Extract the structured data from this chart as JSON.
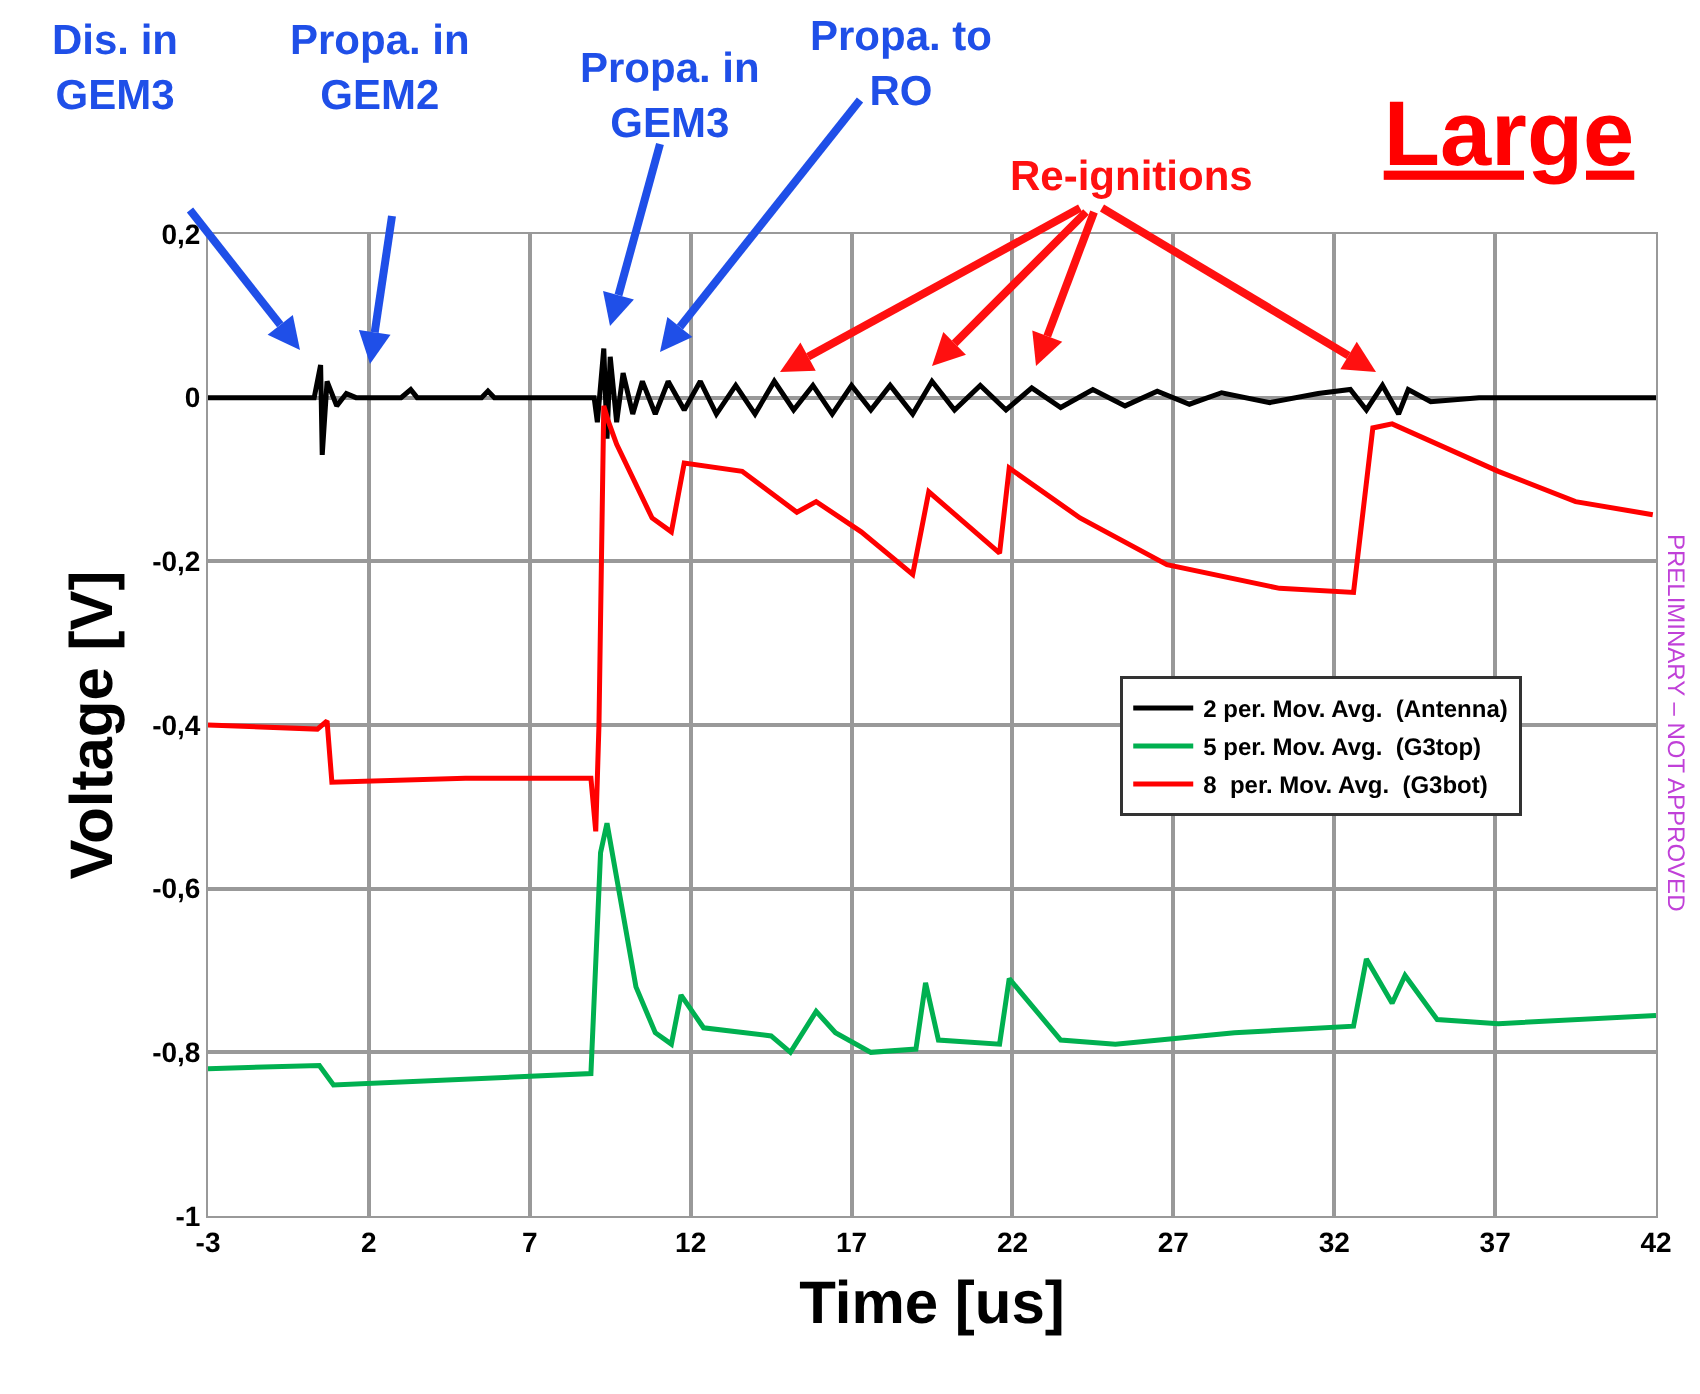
{
  "chart_data": {
    "type": "line",
    "title": "Large",
    "xlabel": "Time [us]",
    "ylabel": "Voltage [V]",
    "xlim": [
      -3,
      42
    ],
    "xticks": [
      -3,
      2,
      7,
      12,
      17,
      22,
      27,
      32,
      37,
      42
    ],
    "ylim": [
      -1,
      0.2
    ],
    "yticks": [
      {
        "value": -1,
        "label": "-1"
      },
      {
        "value": -0.8,
        "label": "-0,8"
      },
      {
        "value": -0.6,
        "label": "-0,6"
      },
      {
        "value": -0.4,
        "label": "-0,4"
      },
      {
        "value": -0.2,
        "label": "-0,2"
      },
      {
        "value": 0,
        "label": "0"
      },
      {
        "value": 0.2,
        "label": "0,2"
      }
    ],
    "grid": true,
    "legend": "right",
    "marker": "none",
    "line_style": "solid",
    "series": [
      {
        "name": "2 per. Mov. Avg.  (Antenna)",
        "color": "#000000",
        "x": [
          -3,
          0.3,
          0.5,
          0.55,
          0.7,
          1,
          1.3,
          1.6,
          3,
          3.3,
          3.5,
          5.5,
          5.7,
          5.9,
          9,
          9.1,
          9.3,
          9.4,
          9.5,
          9.7,
          9.9,
          10.2,
          10.5,
          10.9,
          11.3,
          11.8,
          12.3,
          12.8,
          13.4,
          14,
          14.6,
          15.2,
          15.8,
          16.4,
          17,
          17.6,
          18.2,
          18.9,
          19.5,
          20.2,
          21,
          21.8,
          22.6,
          23.5,
          24.5,
          25.5,
          26.5,
          27.5,
          28.5,
          30,
          31.5,
          32.5,
          33,
          33.5,
          34,
          34.3,
          35,
          36.5,
          38,
          42
        ],
        "values": [
          0,
          0,
          0.04,
          -0.07,
          0.02,
          -0.01,
          0.005,
          0,
          0,
          0.01,
          0,
          0,
          0.008,
          0,
          0,
          -0.03,
          0.06,
          -0.05,
          0.05,
          -0.03,
          0.03,
          -0.02,
          0.02,
          -0.02,
          0.02,
          -0.015,
          0.02,
          -0.02,
          0.015,
          -0.02,
          0.02,
          -0.015,
          0.015,
          -0.02,
          0.015,
          -0.015,
          0.015,
          -0.02,
          0.02,
          -0.015,
          0.015,
          -0.015,
          0.012,
          -0.012,
          0.01,
          -0.01,
          0.008,
          -0.008,
          0.006,
          -0.006,
          0.005,
          0.01,
          -0.015,
          0.015,
          -0.02,
          0.01,
          -0.005,
          0,
          0,
          0
        ]
      },
      {
        "name": "5 per. Mov. Avg.  (G3top)",
        "color": "#00b050",
        "x": [
          -3,
          0.46,
          0.9,
          8.9,
          9.2,
          9.4,
          10.3,
          10.9,
          11.4,
          11.7,
          12.4,
          14.5,
          15.1,
          15.9,
          16.5,
          17.6,
          19,
          19.3,
          19.7,
          21.6,
          21.9,
          23.5,
          25.2,
          28.9,
          32.6,
          33,
          33.8,
          34.2,
          35.2,
          37.1,
          42
        ],
        "values": [
          -0.82,
          -0.816,
          -0.84,
          -0.826,
          -0.556,
          -0.52,
          -0.72,
          -0.776,
          -0.79,
          -0.73,
          -0.77,
          -0.78,
          -0.8,
          -0.75,
          -0.776,
          -0.8,
          -0.796,
          -0.715,
          -0.785,
          -0.79,
          -0.71,
          -0.785,
          -0.79,
          -0.776,
          -0.768,
          -0.686,
          -0.74,
          -0.706,
          -0.76,
          -0.765,
          -0.755
        ]
      },
      {
        "name": "8  per. Mov. Avg.  (G3bot)",
        "color": "#ff0000",
        "x": [
          -3,
          0.4,
          0.7,
          0.85,
          5,
          8.9,
          9.05,
          9.15,
          9.3,
          9.45,
          9.7,
          10.8,
          11.4,
          11.8,
          13.6,
          15.3,
          15.9,
          17.3,
          18.9,
          19.4,
          21.6,
          21.9,
          24.1,
          26.8,
          30.3,
          32.6,
          33.2,
          33.8,
          37.1,
          39.5,
          41.9
        ],
        "values": [
          -0.4,
          -0.405,
          -0.395,
          -0.47,
          -0.465,
          -0.465,
          -0.53,
          -0.4,
          -0.01,
          -0.03,
          -0.057,
          -0.147,
          -0.164,
          -0.08,
          -0.09,
          -0.14,
          -0.127,
          -0.164,
          -0.216,
          -0.115,
          -0.19,
          -0.086,
          -0.147,
          -0.204,
          -0.233,
          -0.238,
          -0.037,
          -0.032,
          -0.09,
          -0.127,
          -0.143
        ]
      }
    ],
    "annotations": [
      "Dis. in\nGEM3",
      "Propa. in\nGEM2",
      "Propa. in\nGEM3",
      "Propa. to\nRO",
      "Re-ignitions",
      "PRELIMINARY – NOT APPROVED"
    ]
  }
}
